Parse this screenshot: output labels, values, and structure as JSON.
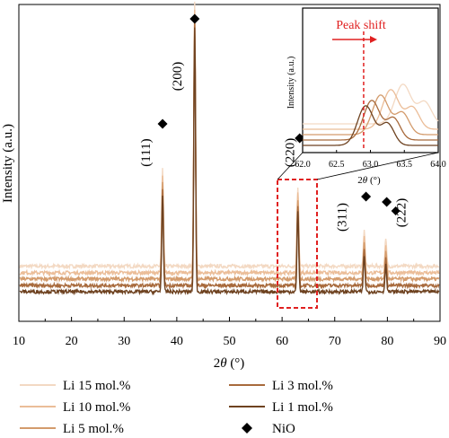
{
  "chart_data": {
    "type": "line",
    "xlabel_main": "2",
    "xlabel_theta": "θ",
    "xlabel_unit": " (°)",
    "ylabel": "Intensity (a.u.)",
    "xlim": [
      10,
      90
    ],
    "x_ticks": [
      "10",
      "20",
      "30",
      "40",
      "50",
      "60",
      "70",
      "80",
      "90"
    ],
    "series": [
      {
        "name": "Li 15 mol.%",
        "color": "#f3d9c3",
        "baseline": 0.86,
        "peaks": [
          [
            37.3,
            3.3
          ],
          [
            43.4,
            8.9
          ],
          [
            63.0,
            2.7
          ],
          [
            75.6,
            1.2
          ],
          [
            79.7,
            0.9
          ]
        ]
      },
      {
        "name": "Li 10 mol.%",
        "color": "#ebbd98",
        "baseline": 0.64,
        "peaks": [
          [
            37.3,
            3.3
          ],
          [
            43.4,
            8.9
          ],
          [
            63.0,
            2.7
          ],
          [
            75.6,
            1.2
          ],
          [
            79.7,
            0.9
          ]
        ]
      },
      {
        "name": "Li 5 mol.%",
        "color": "#d39b6c",
        "baseline": 0.43,
        "peaks": [
          [
            37.3,
            3.3
          ],
          [
            43.4,
            8.9
          ],
          [
            63.0,
            2.7
          ],
          [
            75.6,
            1.2
          ],
          [
            79.7,
            0.9
          ]
        ]
      },
      {
        "name": "Li 3 mol.%",
        "color": "#a86a3c",
        "baseline": 0.21,
        "peaks": [
          [
            37.3,
            3.3
          ],
          [
            43.4,
            8.9
          ],
          [
            63.0,
            2.7
          ],
          [
            75.6,
            1.2
          ],
          [
            79.7,
            0.9
          ]
        ]
      },
      {
        "name": "Li 1 mol.%",
        "color": "#6e4220",
        "baseline": 0.0,
        "peaks": [
          [
            37.3,
            3.3
          ],
          [
            43.4,
            8.9
          ],
          [
            63.0,
            2.7
          ],
          [
            75.6,
            1.2
          ],
          [
            79.7,
            0.9
          ]
        ]
      }
    ],
    "peak_labels": [
      {
        "text": "(111)",
        "x": 37.3
      },
      {
        "text": "(200)",
        "x": 43.4
      },
      {
        "text": "(220)",
        "x": 63.0
      },
      {
        "text": "(311)",
        "x": 75.6
      },
      {
        "text": "(222)",
        "x": 79.7
      }
    ],
    "nio_markers_x": [
      37.3,
      43.4,
      63.0,
      75.6,
      79.7
    ],
    "inset": {
      "title": "Peak shift",
      "xlabel_main": "2",
      "xlabel_theta": "θ",
      "xlabel_unit": " (°)",
      "ylabel": "Intensity (a.u.)",
      "xlim": [
        62.0,
        64.0
      ],
      "x_ticks": [
        "62.0",
        "62.5",
        "63.0",
        "63.5",
        "64.0"
      ],
      "reference_x": 62.9,
      "peak_positions": [
        63.48,
        63.3,
        63.15,
        63.02,
        62.93
      ]
    },
    "legend": {
      "items": [
        "Li 15 mol.%",
        "Li 10 mol.%",
        "Li 5 mol.%",
        "Li 3 mol.%",
        "Li 1 mol.%",
        "NiO"
      ],
      "colors": [
        "#f3d9c3",
        "#ebbd98",
        "#d39b6c",
        "#a86a3c",
        "#6e4220",
        "#000000"
      ],
      "placement": "bottom"
    }
  }
}
